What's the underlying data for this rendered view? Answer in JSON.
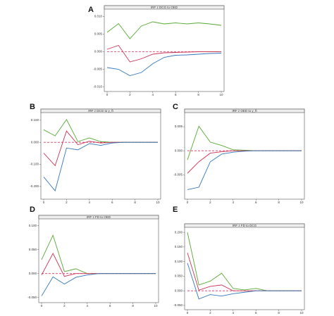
{
  "chart_data": [
    {
      "type": "line",
      "label": "A",
      "title": "IRF z DCG to OED",
      "x": [
        0,
        1,
        2,
        3,
        4,
        5,
        6,
        7,
        8,
        9,
        10
      ],
      "series": [
        {
          "color": "#55aa33",
          "values": [
            0.0055,
            0.008,
            0.0037,
            0.0073,
            0.0085,
            0.0079,
            0.0082,
            0.0079,
            0.0082,
            0.0079,
            0.0075
          ]
        },
        {
          "color": "#cc3355",
          "values": [
            0.0007,
            0.0018,
            -0.0029,
            -0.002,
            -0.0007,
            -0.0003,
            -0.0002,
            -0.0001,
            0,
            0,
            0
          ]
        },
        {
          "color": "#3377bb",
          "values": [
            -0.0045,
            -0.005,
            -0.0068,
            -0.0059,
            -0.0034,
            -0.0016,
            -0.001,
            -0.0009,
            -0.0007,
            -0.0005,
            -0.0004
          ]
        }
      ],
      "hline": 0,
      "xlim": [
        0,
        10
      ],
      "xticks": [
        0,
        2,
        4,
        6,
        8,
        10
      ],
      "ylim": [
        -0.0105,
        0.0115
      ],
      "yticks": [
        {
          "value": -0.01,
          "label": "-0.010"
        },
        {
          "value": -0.005,
          "label": "-0.005"
        },
        {
          "value": 0,
          "label": "0.000"
        },
        {
          "value": 0.005,
          "label": "0.005"
        },
        {
          "value": 0.01,
          "label": "0.010"
        }
      ]
    },
    {
      "type": "line",
      "label": "B",
      "title": "IRF z DCG to y_ft",
      "x": [
        0,
        1,
        2,
        3,
        4,
        5,
        6,
        7,
        8,
        9,
        10
      ],
      "series": [
        {
          "color": "#55aa33",
          "values": [
            0.057,
            0.029,
            0.103,
            0.003,
            0.02,
            0.003,
            0,
            0,
            0,
            0,
            0
          ]
        },
        {
          "color": "#cc3355",
          "values": [
            -0.049,
            -0.106,
            0.051,
            -0.011,
            0.005,
            -0.003,
            0,
            0,
            0,
            0,
            0
          ]
        },
        {
          "color": "#3377bb",
          "values": [
            -0.157,
            -0.22,
            -0.026,
            -0.034,
            -0.006,
            -0.014,
            -0.003,
            0,
            0,
            0,
            0
          ]
        }
      ],
      "hline": 0,
      "xlim": [
        0,
        10
      ],
      "xticks": [
        0,
        2,
        4,
        6,
        8,
        10
      ],
      "ylim": [
        -0.245,
        0.125
      ],
      "yticks": [
        {
          "value": -0.2,
          "label": "-0.200"
        },
        {
          "value": -0.1,
          "label": "-0.100"
        },
        {
          "value": 0,
          "label": "0.000"
        },
        {
          "value": 0.1,
          "label": "0.100"
        }
      ]
    },
    {
      "type": "line",
      "label": "C",
      "title": "IRF z OED to y_ft",
      "x": [
        0,
        1,
        2,
        3,
        4,
        5,
        6,
        7,
        8,
        9,
        10
      ],
      "series": [
        {
          "color": "#55aa33",
          "values": [
            -0.0019,
            0.0051,
            0.0018,
            0.0011,
            0.0002,
            0.0001,
            0,
            0,
            0,
            0,
            0
          ]
        },
        {
          "color": "#cc3355",
          "values": [
            -0.0047,
            -0.0023,
            -0.0005,
            -0.0002,
            0,
            0,
            0,
            0,
            0,
            0,
            0
          ]
        },
        {
          "color": "#3377bb",
          "values": [
            -0.0081,
            -0.0076,
            -0.0023,
            -0.0007,
            -0.0003,
            -0.0001,
            0,
            0,
            0,
            0,
            0
          ]
        }
      ],
      "hline": 0,
      "xlim": [
        0,
        10
      ],
      "xticks": [
        0,
        2,
        4,
        6,
        8,
        10
      ],
      "ylim": [
        -0.0095,
        0.0075
      ],
      "yticks": [
        {
          "value": -0.005,
          "label": "-0.005"
        },
        {
          "value": 0,
          "label": "0.000"
        },
        {
          "value": 0.005,
          "label": "0.005"
        }
      ]
    },
    {
      "type": "line",
      "label": "D",
      "title": "IRF z FD to OED",
      "x": [
        0,
        1,
        2,
        3,
        4,
        5,
        6,
        7,
        8,
        9,
        10
      ],
      "series": [
        {
          "color": "#55aa33",
          "values": [
            0.029,
            0.08,
            0.004,
            0.01,
            0,
            0,
            0,
            0,
            0,
            0,
            0
          ]
        },
        {
          "color": "#cc3355",
          "values": [
            -0.003,
            0.042,
            -0.006,
            0,
            0,
            0,
            0,
            0,
            0,
            0,
            0
          ]
        },
        {
          "color": "#3377bb",
          "values": [
            -0.047,
            -0.007,
            -0.022,
            -0.008,
            -0.003,
            0,
            0,
            0,
            0,
            0,
            0
          ]
        }
      ],
      "hline": 0,
      "xlim": [
        0,
        10
      ],
      "xticks": [
        0,
        2,
        4,
        6,
        8,
        10
      ],
      "ylim": [
        -0.055,
        0.11
      ],
      "yticks": [
        {
          "value": -0.05,
          "label": "-0.050"
        },
        {
          "value": 0,
          "label": "0.000"
        },
        {
          "value": 0.05,
          "label": "0.050"
        },
        {
          "value": 0.1,
          "label": "0.100"
        }
      ]
    },
    {
      "type": "line",
      "label": "E",
      "title": "IRF z FD to DCG",
      "x": [
        0,
        1,
        2,
        3,
        4,
        5,
        6,
        7,
        8,
        9,
        10
      ],
      "series": [
        {
          "color": "#55aa33",
          "values": [
            0.2,
            0.02,
            0.033,
            0.06,
            0.008,
            0.003,
            0.008,
            0,
            0,
            0,
            0
          ]
        },
        {
          "color": "#cc3355",
          "values": [
            0.13,
            0.002,
            0.015,
            0.02,
            0,
            0,
            0,
            0,
            0,
            0,
            0
          ]
        },
        {
          "color": "#3377bb",
          "values": [
            0.095,
            -0.028,
            -0.013,
            -0.018,
            -0.01,
            -0.005,
            0,
            0,
            0,
            0,
            0
          ]
        }
      ],
      "hline": 0,
      "xlim": [
        0,
        10
      ],
      "xticks": [
        0,
        2,
        4,
        6,
        8,
        10
      ],
      "ylim": [
        -0.055,
        0.21
      ],
      "yticks": [
        {
          "value": -0.05,
          "label": "-0.050"
        },
        {
          "value": 0,
          "label": "0.000"
        },
        {
          "value": 0.05,
          "label": "0.050"
        },
        {
          "value": 0.1,
          "label": "0.100"
        },
        {
          "value": 0.15,
          "label": "0.150"
        },
        {
          "value": 0.2,
          "label": "0.200"
        }
      ]
    }
  ]
}
